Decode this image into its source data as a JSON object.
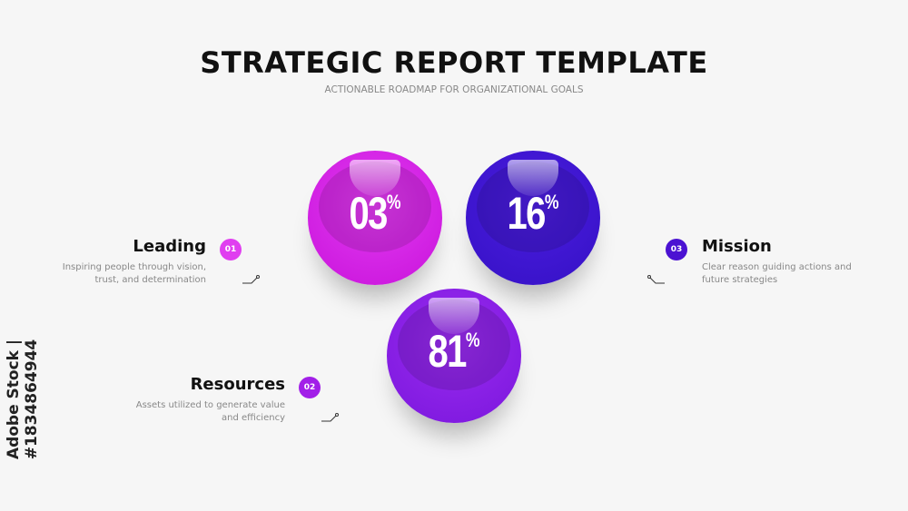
{
  "header": {
    "title": "STRATEGIC REPORT TEMPLATE",
    "subtitle": "ACTIONABLE ROADMAP FOR ORGANIZATIONAL GOALS"
  },
  "spheres": [
    {
      "value": "03",
      "unit": "%",
      "color": "#d41ee8"
    },
    {
      "value": "16",
      "unit": "%",
      "color": "#3a0fcf"
    },
    {
      "value": "81",
      "unit": "%",
      "color": "#8c1ce8"
    }
  ],
  "items": [
    {
      "number": "01",
      "title": "Leading",
      "description": "Inspiring people through vision, trust, and determination",
      "color": "#e03ef0"
    },
    {
      "number": "02",
      "title": "Resources",
      "description": "Assets utilized to generate value and efficiency",
      "color": "#a21fe8"
    },
    {
      "number": "03",
      "title": "Mission",
      "description": "Clear reason guiding actions and future strategies",
      "color": "#4b12d2"
    }
  ],
  "watermark": "Adobe Stock | #1834864944"
}
